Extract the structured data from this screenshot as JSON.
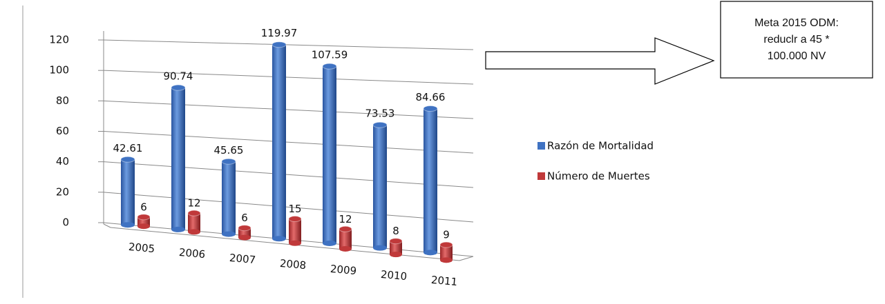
{
  "chart_data": {
    "type": "bar3d",
    "categories": [
      "2005",
      "2006",
      "2007",
      "2008",
      "2009",
      "2010",
      "2011"
    ],
    "series": [
      {
        "name": "Razón de Mortalidad",
        "color": "#3f72c2",
        "values": [
          42.61,
          90.74,
          45.65,
          119.97,
          107.59,
          73.53,
          84.66
        ]
      },
      {
        "name": "Número de Muertes",
        "color": "#c0393a",
        "values": [
          6,
          12,
          6,
          15,
          12,
          8,
          9
        ]
      }
    ],
    "ylim": [
      0,
      120
    ],
    "yticks": [
      0,
      20,
      40,
      60,
      80,
      100,
      120
    ],
    "grid": true,
    "legend": "right",
    "annotation": [
      "Meta 2015 ODM:",
      "reduclr a 45 *",
      "100.000 NV"
    ]
  }
}
